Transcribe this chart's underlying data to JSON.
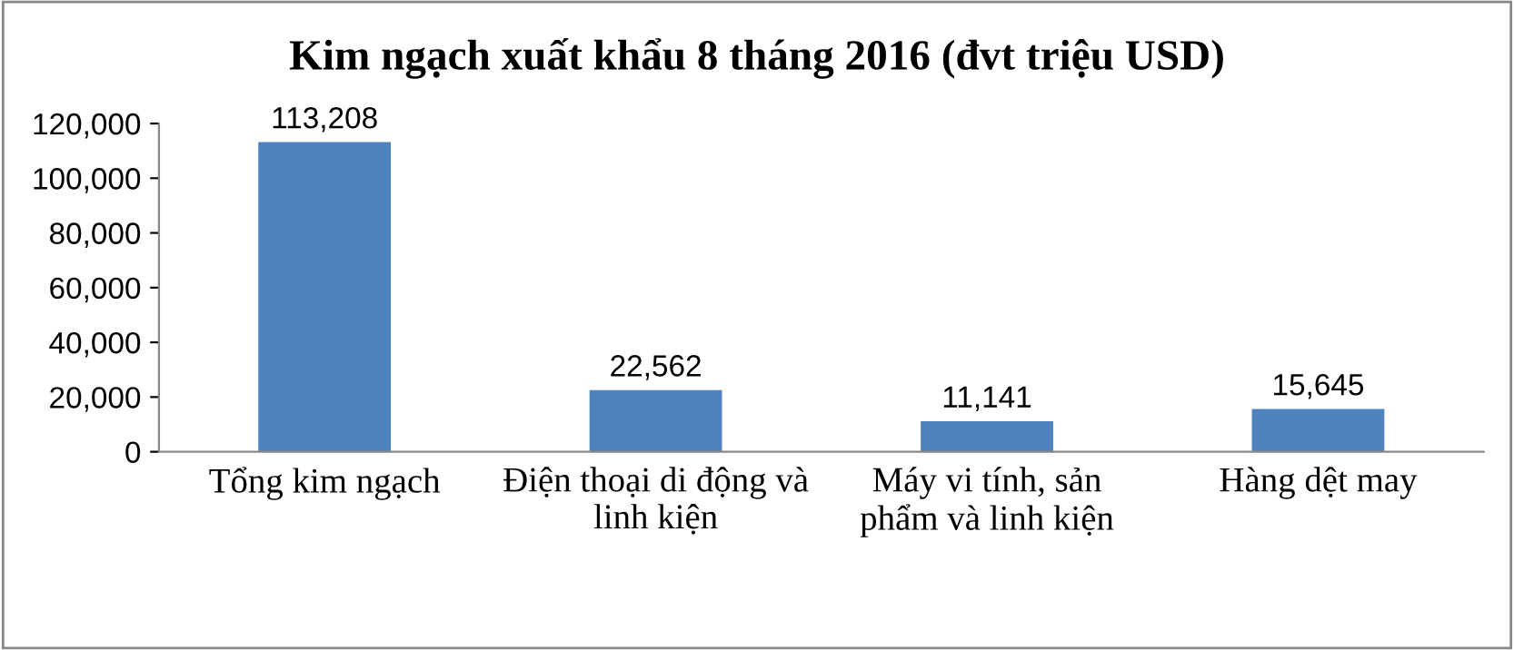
{
  "chart_data": {
    "type": "bar",
    "title": "Kim ngạch xuất khẩu 8 tháng 2016 (đvt triệu USD)",
    "categories": [
      "Tổng kim ngạch",
      "Điện thoại di động và\nlinh kiện",
      "Máy vi tính, sản\nphẩm và linh kiện",
      "Hàng dệt may"
    ],
    "values": [
      113208,
      22562,
      11141,
      15645
    ],
    "value_labels": [
      "113,208",
      "22,562",
      "11,141",
      "15,645"
    ],
    "color": "#4f81bd",
    "ylim": [
      0,
      120000
    ],
    "yticks": [
      0,
      {
        "value": 20000,
        "label": "20,000"
      },
      {
        "value": 40000,
        "label": "40,000"
      },
      {
        "value": 60000,
        "label": "60,000"
      },
      {
        "value": 80000,
        "label": "80,000"
      },
      {
        "value": 100000,
        "label": "100,000"
      },
      {
        "value": 120000,
        "label": "120,000"
      }
    ],
    "grid": false,
    "legend": false
  }
}
